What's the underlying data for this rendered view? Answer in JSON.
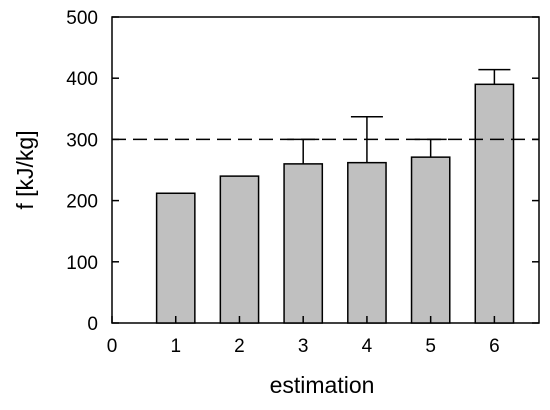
{
  "chart_data": {
    "type": "bar",
    "xlabel": "estimation",
    "ylabel": "f [kJ/kg]",
    "x_ticks": [
      "0",
      "1",
      "2",
      "3",
      "4",
      "5",
      "6"
    ],
    "y_ticks": [
      "0",
      "100",
      "200",
      "300",
      "400",
      "500"
    ],
    "xlim": [
      0,
      6.7
    ],
    "ylim": [
      0,
      500
    ],
    "grid": false,
    "categories": [
      "1",
      "2",
      "3",
      "4",
      "5",
      "6"
    ],
    "values": [
      212,
      240,
      260,
      262,
      271,
      390
    ],
    "error_upper": [
      null,
      null,
      300,
      337,
      300,
      414
    ],
    "reference_line": {
      "y": 300,
      "style": "dashed"
    },
    "bar_color": "#c0c0c0",
    "bar_edge_color": "#000000"
  }
}
